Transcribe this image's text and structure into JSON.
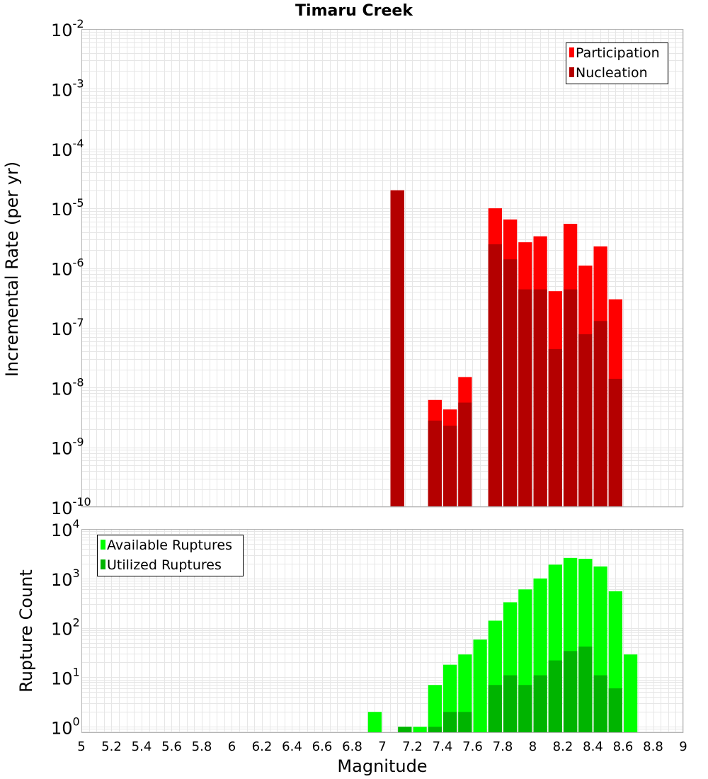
{
  "chart_data": {
    "title": "Timaru Creek",
    "xlabel": "Magnitude",
    "x_ticks": [
      "5",
      "5.2",
      "5.4",
      "5.6",
      "5.8",
      "6",
      "6.2",
      "6.4",
      "6.6",
      "6.8",
      "7",
      "7.2",
      "7.4",
      "7.6",
      "7.8",
      "8",
      "8.2",
      "8.4",
      "8.6",
      "8.8",
      "9"
    ],
    "xlim": [
      5,
      9
    ],
    "bin_width": 0.1,
    "grid": true,
    "panels": [
      {
        "type": "bar",
        "ylabel": "Incremental Rate (per yr)",
        "yscale": "log",
        "ylim": [
          1e-10,
          0.01
        ],
        "y_tick_exponents": [
          "-10",
          "-9",
          "-8",
          "-7",
          "-6",
          "-5",
          "-4",
          "-3",
          "-2"
        ],
        "y_tick_base": "10",
        "legend_position": "top-right",
        "series": [
          {
            "name": "Participation",
            "color": "#ff0000",
            "points": [
              {
                "x": 7.1,
                "y": 2e-05
              },
              {
                "x": 7.35,
                "y": 6.2e-09
              },
              {
                "x": 7.45,
                "y": 4.3e-09
              },
              {
                "x": 7.55,
                "y": 1.5e-08
              },
              {
                "x": 7.75,
                "y": 1e-05
              },
              {
                "x": 7.85,
                "y": 6.5e-06
              },
              {
                "x": 7.95,
                "y": 2.7e-06
              },
              {
                "x": 8.05,
                "y": 3.4e-06
              },
              {
                "x": 8.15,
                "y": 4.1e-07
              },
              {
                "x": 8.25,
                "y": 5.5e-06
              },
              {
                "x": 8.35,
                "y": 1.1e-06
              },
              {
                "x": 8.45,
                "y": 2.3e-06
              },
              {
                "x": 8.55,
                "y": 3e-07
              }
            ]
          },
          {
            "name": "Nucleation",
            "color": "#b40000",
            "points": [
              {
                "x": 7.1,
                "y": 2e-05
              },
              {
                "x": 7.35,
                "y": 2.8e-09
              },
              {
                "x": 7.45,
                "y": 2.3e-09
              },
              {
                "x": 7.55,
                "y": 5.6e-09
              },
              {
                "x": 7.75,
                "y": 2.5e-06
              },
              {
                "x": 7.85,
                "y": 1.4e-06
              },
              {
                "x": 7.95,
                "y": 4.4e-07
              },
              {
                "x": 8.05,
                "y": 4.4e-07
              },
              {
                "x": 8.15,
                "y": 4.4e-08
              },
              {
                "x": 8.25,
                "y": 4.4e-07
              },
              {
                "x": 8.35,
                "y": 7.8e-08
              },
              {
                "x": 8.45,
                "y": 1.3e-07
              },
              {
                "x": 8.55,
                "y": 1.4e-08
              }
            ]
          }
        ]
      },
      {
        "type": "bar",
        "ylabel": "Rupture Count",
        "yscale": "log",
        "ylim": [
          0.75,
          10000.0
        ],
        "y_tick_exponents": [
          "0",
          "1",
          "2",
          "3",
          "4"
        ],
        "y_tick_base": "10",
        "legend_position": "top-left",
        "series": [
          {
            "name": "Available Ruptures",
            "color": "#00ff00",
            "points": [
              {
                "x": 6.95,
                "y": 2
              },
              {
                "x": 7.15,
                "y": 1
              },
              {
                "x": 7.25,
                "y": 1
              },
              {
                "x": 7.35,
                "y": 7
              },
              {
                "x": 7.45,
                "y": 18
              },
              {
                "x": 7.55,
                "y": 29
              },
              {
                "x": 7.65,
                "y": 58
              },
              {
                "x": 7.75,
                "y": 140
              },
              {
                "x": 7.85,
                "y": 330
              },
              {
                "x": 7.95,
                "y": 600
              },
              {
                "x": 8.05,
                "y": 1000
              },
              {
                "x": 8.15,
                "y": 1900
              },
              {
                "x": 8.25,
                "y": 2600
              },
              {
                "x": 8.35,
                "y": 2500
              },
              {
                "x": 8.45,
                "y": 1750
              },
              {
                "x": 8.55,
                "y": 550
              },
              {
                "x": 8.65,
                "y": 29
              }
            ]
          },
          {
            "name": "Utilized Ruptures",
            "color": "#00b400",
            "points": [
              {
                "x": 7.15,
                "y": 1
              },
              {
                "x": 7.35,
                "y": 1
              },
              {
                "x": 7.45,
                "y": 2
              },
              {
                "x": 7.55,
                "y": 2
              },
              {
                "x": 7.75,
                "y": 7
              },
              {
                "x": 7.85,
                "y": 11
              },
              {
                "x": 7.95,
                "y": 7
              },
              {
                "x": 8.05,
                "y": 11
              },
              {
                "x": 8.15,
                "y": 22
              },
              {
                "x": 8.25,
                "y": 34
              },
              {
                "x": 8.35,
                "y": 42
              },
              {
                "x": 8.45,
                "y": 11
              },
              {
                "x": 8.55,
                "y": 6
              }
            ]
          }
        ]
      }
    ]
  }
}
